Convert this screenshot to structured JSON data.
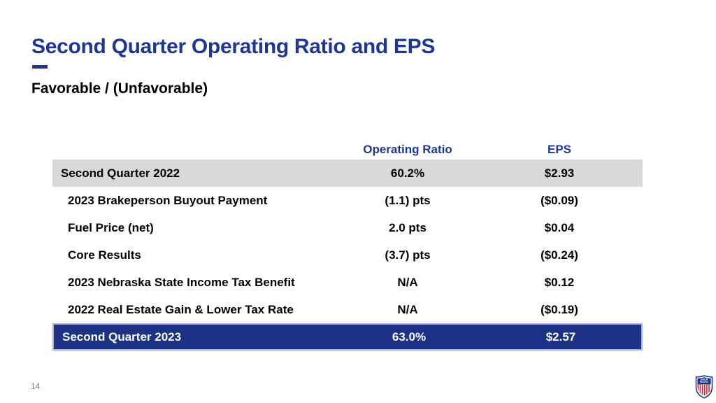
{
  "slide": {
    "title": "Second Quarter Operating Ratio and EPS",
    "subtitle": "Favorable / (Unfavorable)",
    "page_number": "14"
  },
  "table": {
    "headers": {
      "label": "",
      "operating_ratio": "Operating Ratio",
      "eps": "EPS"
    },
    "rows": [
      {
        "label": "Second Quarter 2022",
        "operating_ratio": "60.2%",
        "eps": "$2.93",
        "style": "gray",
        "indent": false
      },
      {
        "label": "2023 Brakeperson Buyout Payment",
        "operating_ratio": "(1.1) pts",
        "eps": "($0.09)",
        "style": "normal",
        "indent": true
      },
      {
        "label": "Fuel Price (net)",
        "operating_ratio": "2.0 pts",
        "eps": "$0.04",
        "style": "normal",
        "indent": true
      },
      {
        "label": "Core Results",
        "operating_ratio": "(3.7) pts",
        "eps": "($0.24)",
        "style": "normal",
        "indent": true
      },
      {
        "label": "2023 Nebraska State Income Tax Benefit",
        "operating_ratio": "N/A",
        "eps": "$0.12",
        "style": "normal",
        "indent": true
      },
      {
        "label": "2022 Real Estate Gain & Lower Tax Rate",
        "operating_ratio": "N/A",
        "eps": "($0.19)",
        "style": "normal",
        "indent": true
      },
      {
        "label": "Second Quarter 2023",
        "operating_ratio": "63.0%",
        "eps": "$2.57",
        "style": "blue",
        "indent": false
      }
    ]
  },
  "logo": {
    "line1": "UNION",
    "line2": "PACIFIC"
  },
  "colors": {
    "brand_blue": "#1E3796",
    "row_blue": "#1B3287",
    "row_gray": "#D9D9D9",
    "row_border": "#A6B0DB",
    "page_gray": "#7F7F7F",
    "logo_red": "#D22630"
  }
}
